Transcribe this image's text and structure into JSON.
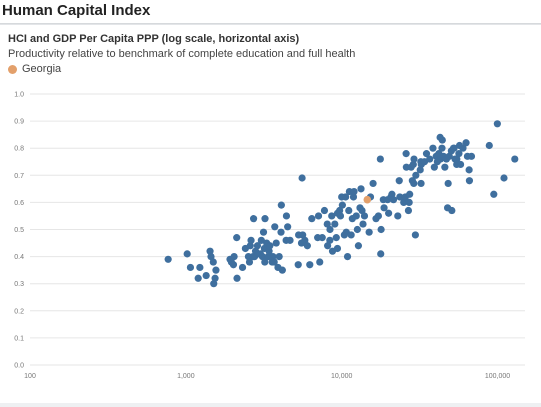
{
  "page": {
    "title": "Human Capital Index"
  },
  "colors": {
    "base": "#3f6f9e",
    "highlight": "#e3a06b",
    "grid": "#e6e6e6"
  },
  "chart_data": {
    "type": "scatter",
    "title": "HCI and GDP Per Capita PPP (log scale, horizontal axis)",
    "subtitle": "Productivity relative to benchmark of complete education and full health",
    "legend": [
      {
        "label": "Georgia",
        "color": "#e3a06b"
      }
    ],
    "legend_position": "top-left",
    "x_scale": "log",
    "xlim": [
      100,
      150000
    ],
    "ylim": [
      0,
      1
    ],
    "x_ticks": [
      100,
      1000,
      10000,
      100000
    ],
    "x_tick_labels": [
      "100",
      "1,000",
      "10,000",
      "100,000"
    ],
    "y_ticks": [
      0,
      0.1,
      0.2,
      0.3,
      0.4,
      0.5,
      0.6,
      0.7,
      0.8,
      0.9,
      1.0
    ],
    "y_tick_labels": [
      "0.0",
      "0.1",
      "0.2",
      "0.3",
      "0.4",
      "0.5",
      "0.6",
      "0.7",
      "0.8",
      "0.9",
      "1.0"
    ],
    "grid": true,
    "highlight": {
      "name": "Georgia",
      "x": 14600,
      "y": 0.61
    },
    "points": [
      [
        770,
        0.39
      ],
      [
        1020,
        0.41
      ],
      [
        1070,
        0.36
      ],
      [
        1200,
        0.32
      ],
      [
        1230,
        0.36
      ],
      [
        1350,
        0.33
      ],
      [
        1430,
        0.42
      ],
      [
        1450,
        0.4
      ],
      [
        1500,
        0.38
      ],
      [
        1510,
        0.3
      ],
      [
        1540,
        0.32
      ],
      [
        1560,
        0.35
      ],
      [
        1920,
        0.39
      ],
      [
        1960,
        0.38
      ],
      [
        2020,
        0.37
      ],
      [
        2040,
        0.4
      ],
      [
        2120,
        0.47
      ],
      [
        2130,
        0.32
      ],
      [
        2310,
        0.36
      ],
      [
        2410,
        0.43
      ],
      [
        2520,
        0.4
      ],
      [
        2560,
        0.38
      ],
      [
        2590,
        0.44
      ],
      [
        2620,
        0.46
      ],
      [
        2700,
        0.4
      ],
      [
        2720,
        0.54
      ],
      [
        2760,
        0.4
      ],
      [
        2800,
        0.42
      ],
      [
        2880,
        0.44
      ],
      [
        2920,
        0.41
      ],
      [
        3010,
        0.41
      ],
      [
        3050,
        0.46
      ],
      [
        3100,
        0.4
      ],
      [
        3150,
        0.49
      ],
      [
        3190,
        0.43
      ],
      [
        3210,
        0.38
      ],
      [
        3220,
        0.54
      ],
      [
        3300,
        0.45
      ],
      [
        3380,
        0.4
      ],
      [
        3420,
        0.42
      ],
      [
        3460,
        0.44
      ],
      [
        3580,
        0.38
      ],
      [
        3620,
        0.4
      ],
      [
        3690,
        0.38
      ],
      [
        3720,
        0.51
      ],
      [
        3800,
        0.45
      ],
      [
        3900,
        0.36
      ],
      [
        3970,
        0.4
      ],
      [
        4080,
        0.49
      ],
      [
        4100,
        0.59
      ],
      [
        4160,
        0.35
      ],
      [
        4400,
        0.46
      ],
      [
        4420,
        0.55
      ],
      [
        4500,
        0.51
      ],
      [
        4660,
        0.46
      ],
      [
        5260,
        0.37
      ],
      [
        5290,
        0.48
      ],
      [
        5520,
        0.45
      ],
      [
        5570,
        0.69
      ],
      [
        5620,
        0.48
      ],
      [
        5800,
        0.46
      ],
      [
        6020,
        0.44
      ],
      [
        6240,
        0.37
      ],
      [
        6430,
        0.54
      ],
      [
        7010,
        0.47
      ],
      [
        7100,
        0.55
      ],
      [
        7230,
        0.38
      ],
      [
        7500,
        0.47
      ],
      [
        7750,
        0.57
      ],
      [
        8080,
        0.52
      ],
      [
        8120,
        0.44
      ],
      [
        8390,
        0.46
      ],
      [
        8410,
        0.5
      ],
      [
        8630,
        0.55
      ],
      [
        8730,
        0.42
      ],
      [
        9030,
        0.52
      ],
      [
        9230,
        0.47
      ],
      [
        9390,
        0.43
      ],
      [
        9400,
        0.56
      ],
      [
        9700,
        0.57
      ],
      [
        9820,
        0.55
      ],
      [
        10000,
        0.62
      ],
      [
        10100,
        0.59
      ],
      [
        10400,
        0.48
      ],
      [
        10600,
        0.62
      ],
      [
        10700,
        0.49
      ],
      [
        10900,
        0.4
      ],
      [
        11100,
        0.57
      ],
      [
        11200,
        0.64
      ],
      [
        11500,
        0.48
      ],
      [
        11700,
        0.54
      ],
      [
        11900,
        0.62
      ],
      [
        12000,
        0.64
      ],
      [
        12400,
        0.55
      ],
      [
        12600,
        0.5
      ],
      [
        12800,
        0.44
      ],
      [
        13100,
        0.58
      ],
      [
        13300,
        0.65
      ],
      [
        13500,
        0.57
      ],
      [
        13700,
        0.52
      ],
      [
        14000,
        0.55
      ],
      [
        15000,
        0.49
      ],
      [
        15300,
        0.62
      ],
      [
        15900,
        0.67
      ],
      [
        16600,
        0.54
      ],
      [
        17200,
        0.55
      ],
      [
        17700,
        0.76
      ],
      [
        17800,
        0.41
      ],
      [
        17900,
        0.5
      ],
      [
        18500,
        0.61
      ],
      [
        18700,
        0.58
      ],
      [
        19700,
        0.61
      ],
      [
        20000,
        0.56
      ],
      [
        20700,
        0.62
      ],
      [
        21000,
        0.63
      ],
      [
        21500,
        0.61
      ],
      [
        22900,
        0.55
      ],
      [
        23400,
        0.68
      ],
      [
        23600,
        0.62
      ],
      [
        25000,
        0.6
      ],
      [
        25600,
        0.62
      ],
      [
        25900,
        0.78
      ],
      [
        26000,
        0.73
      ],
      [
        26800,
        0.57
      ],
      [
        27100,
        0.6
      ],
      [
        27300,
        0.63
      ],
      [
        27900,
        0.73
      ],
      [
        28400,
        0.68
      ],
      [
        28800,
        0.74
      ],
      [
        29000,
        0.67
      ],
      [
        29100,
        0.76
      ],
      [
        29700,
        0.48
      ],
      [
        29900,
        0.7
      ],
      [
        31900,
        0.72
      ],
      [
        32200,
        0.75
      ],
      [
        32300,
        0.67
      ],
      [
        32400,
        0.74
      ],
      [
        34000,
        0.75
      ],
      [
        35000,
        0.78
      ],
      [
        36700,
        0.76
      ],
      [
        38500,
        0.8
      ],
      [
        39300,
        0.73
      ],
      [
        40400,
        0.77
      ],
      [
        41100,
        0.75
      ],
      [
        42000,
        0.78
      ],
      [
        42800,
        0.84
      ],
      [
        43000,
        0.76
      ],
      [
        44000,
        0.8
      ],
      [
        44200,
        0.83
      ],
      [
        45000,
        0.77
      ],
      [
        45900,
        0.73
      ],
      [
        47000,
        0.76
      ],
      [
        47800,
        0.58
      ],
      [
        48200,
        0.67
      ],
      [
        49000,
        0.77
      ],
      [
        50500,
        0.79
      ],
      [
        50900,
        0.57
      ],
      [
        52200,
        0.8
      ],
      [
        52600,
        0.8
      ],
      [
        53400,
        0.76
      ],
      [
        54700,
        0.74
      ],
      [
        54800,
        0.76
      ],
      [
        56500,
        0.78
      ],
      [
        57000,
        0.81
      ],
      [
        57900,
        0.74
      ],
      [
        60000,
        0.8
      ],
      [
        62800,
        0.82
      ],
      [
        64100,
        0.77
      ],
      [
        65700,
        0.72
      ],
      [
        66000,
        0.68
      ],
      [
        68000,
        0.77
      ],
      [
        88500,
        0.81
      ],
      [
        94600,
        0.63
      ],
      [
        99700,
        0.89
      ],
      [
        110000,
        0.69
      ],
      [
        129000,
        0.76
      ]
    ]
  }
}
